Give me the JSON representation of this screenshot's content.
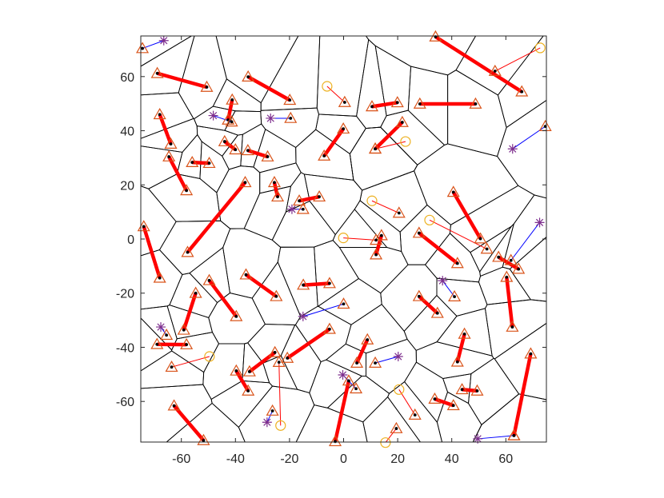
{
  "chart_data": {
    "type": "scatter",
    "xlim": [
      -75,
      75
    ],
    "ylim": [
      -75,
      75
    ],
    "xticks": [
      -60,
      -40,
      -20,
      0,
      20,
      40,
      60
    ],
    "yticks": [
      -60,
      -40,
      -20,
      0,
      20,
      40,
      60
    ],
    "voronoi": true,
    "lines": [
      {
        "color": "#ff0000",
        "width": 4.5,
        "start_marker": "triangle-dot",
        "end_marker": "triangle-dot",
        "x1": [
          -68.9,
          -35.3,
          34,
          28.2,
          10.5,
          -68,
          -41.2,
          -0.1,
          21.7,
          -64.6,
          -56,
          -35.4,
          -36.4,
          -25.6,
          -16.4,
          40.6,
          27.9,
          -73.9,
          -36.1,
          -49.7,
          -14.9,
          -54.7,
          -5.2,
          27.9,
          60.3,
          44.7,
          -69,
          69.2,
          1.9,
          -62.7,
          -25.4,
          8.8,
          43.8,
          33.7,
          -39.7,
          12,
          57.3,
          -44
        ],
        "y1": [
          61.2,
          59.9,
          74.7,
          49.9,
          48.9,
          46,
          51.4,
          40.7,
          43.1,
          30.4,
          28.3,
          32.7,
          20.9,
          20.9,
          14.1,
          17.3,
          2.2,
          4.6,
          -13.2,
          -15.3,
          -17,
          -20,
          -33.3,
          -21.2,
          -14.1,
          -35.1,
          -38.9,
          -42.4,
          -52.4,
          -61.6,
          -41.9,
          -37.2,
          -55.6,
          -59.1,
          -48.7,
          -5.8,
          -6.7,
          36
        ],
        "x2": [
          -50.6,
          -19.9,
          65.9,
          48.8,
          19.9,
          -63.9,
          -42.7,
          -7.2,
          11.7,
          -58.1,
          -49.7,
          -28.1,
          -57.7,
          -24.4,
          -9,
          50.6,
          42.1,
          -68,
          -24.9,
          -39.7,
          -5.2,
          -59.1,
          -20.8,
          34.7,
          62.4,
          42.1,
          -58.1,
          63,
          -3.1,
          -51.8,
          -34.8,
          4.9,
          49.4,
          40.6,
          -35.3,
          14,
          64.7,
          -40
        ],
        "y2": [
          56.1,
          51.3,
          54.4,
          49.9,
          50.4,
          35.1,
          44,
          30.7,
          33.3,
          17.9,
          28,
          30.4,
          -4.9,
          15.6,
          15.6,
          0.1,
          -9,
          -14.4,
          -21.2,
          -28.6,
          -16.4,
          -33.6,
          -44,
          -27.4,
          -32.5,
          -45.4,
          -39,
          -72.6,
          -74.8,
          -74.4,
          -49,
          -45.8,
          -56.1,
          -61.5,
          -56.1,
          1.3,
          -11.1,
          33
        ]
      },
      {
        "color": "#ff0000",
        "width": 1,
        "start_marker": "circle",
        "end_marker": "triangle-dot",
        "x1": [
          -6.1,
          10.5,
          -0.1,
          22.9,
          31.8,
          72.7,
          20.5,
          -23.3,
          15.5,
          -49.6
        ],
        "y1": [
          56.4,
          14.1,
          0.4,
          36,
          7,
          70.6,
          -55.6,
          -68.9,
          -75.2,
          -43.4
        ],
        "x2": [
          0.4,
          20.5,
          12,
          11.7,
          53,
          56,
          26.4,
          -23.9,
          19.5,
          -63.6
        ],
        "y2": [
          50.5,
          9.6,
          -0.4,
          33.3,
          -3.7,
          62,
          -65,
          -45.5,
          -70,
          -47.3
        ]
      },
      {
        "color": "#0000ff",
        "width": 1,
        "start_marker": "asterisk",
        "end_marker": "triangle-dot",
        "x1": [
          -66.5,
          -27,
          -48.2,
          -19.1,
          62.5,
          72.5,
          -0.3,
          -15,
          20.2,
          49.6,
          -28.3,
          36.6,
          -67.6
        ],
        "y1": [
          73.3,
          44.6,
          45.6,
          11,
          33.3,
          6.1,
          -50.2,
          -28.6,
          -43.4,
          -73.8,
          -67.7,
          -15.4,
          -32.5
        ],
        "x2": [
          -74.4,
          -19.6,
          -41.4,
          -15,
          74.6,
          61.9,
          4.6,
          0,
          11.7,
          63,
          -26.3,
          41,
          -65.5
        ],
        "y2": [
          70.4,
          44.6,
          43.3,
          11,
          41.6,
          -7.9,
          -55.3,
          -24,
          -45.8,
          -72.6,
          -63.5,
          -21.3,
          -35.5
        ]
      }
    ]
  }
}
